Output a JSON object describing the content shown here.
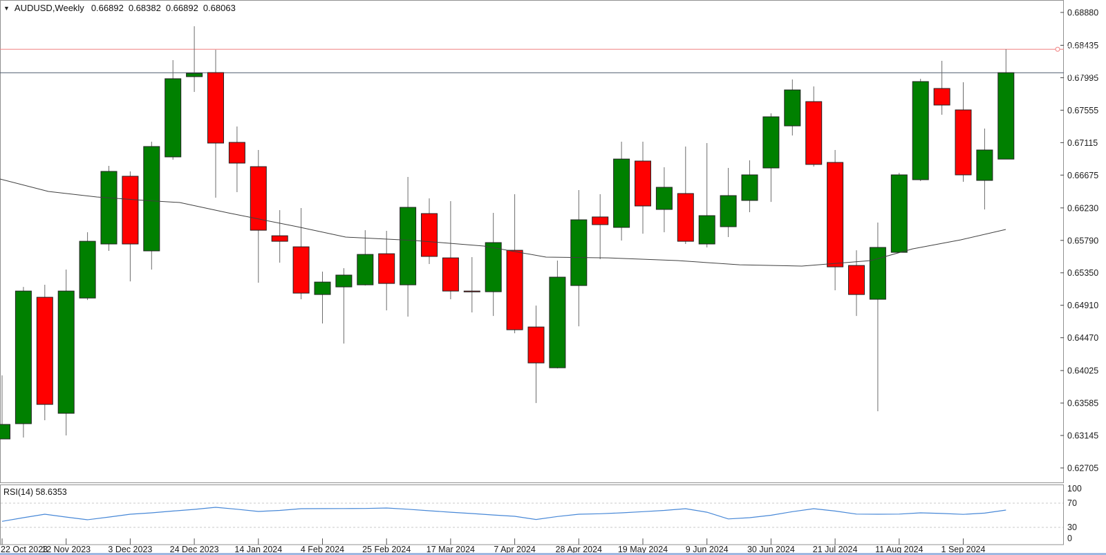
{
  "title": {
    "symbol": "AUDUSD,Weekly",
    "open": "0.66892",
    "high": "0.68382",
    "low": "0.66892",
    "close": "0.68063"
  },
  "chart_data": {
    "type": "candlestick",
    "symbol": "AUDUSD",
    "timeframe": "Weekly",
    "legend_position": "top-left",
    "grid": false,
    "current_bar": {
      "open": 0.66892,
      "high": 0.68382,
      "low": 0.66892,
      "close": 0.68063
    },
    "y_axis": {
      "side": "right",
      "ticks": [
        {
          "price": 0.6888,
          "label": "0.68880"
        },
        {
          "price": 0.68435,
          "label": "0.68435"
        },
        {
          "price": 0.67995,
          "label": "0.67995"
        },
        {
          "price": 0.67555,
          "label": "0.67555"
        },
        {
          "price": 0.67115,
          "label": "0.67115"
        },
        {
          "price": 0.66675,
          "label": "0.66675"
        },
        {
          "price": 0.6623,
          "label": "0.66230"
        },
        {
          "price": 0.6579,
          "label": "0.65790"
        },
        {
          "price": 0.6535,
          "label": "0.65350"
        },
        {
          "price": 0.6491,
          "label": "0.64910"
        },
        {
          "price": 0.6447,
          "label": "0.64470"
        },
        {
          "price": 0.64025,
          "label": "0.64025"
        },
        {
          "price": 0.63585,
          "label": "0.63585"
        },
        {
          "price": 0.63145,
          "label": "0.63145"
        },
        {
          "price": 0.62705,
          "label": "0.62705"
        }
      ]
    },
    "x_axis": {
      "labels": [
        {
          "index": 0,
          "label": "22 Oct 2023"
        },
        {
          "index": 3,
          "label": "12 Nov 2023"
        },
        {
          "index": 6,
          "label": "3 Dec 2023"
        },
        {
          "index": 9,
          "label": "24 Dec 2023"
        },
        {
          "index": 12,
          "label": "14 Jan 2024"
        },
        {
          "index": 15,
          "label": "4 Feb 2024"
        },
        {
          "index": 18,
          "label": "25 Feb 2024"
        },
        {
          "index": 21,
          "label": "17 Mar 2024"
        },
        {
          "index": 24,
          "label": "7 Apr 2024"
        },
        {
          "index": 27,
          "label": "28 Apr 2024"
        },
        {
          "index": 30,
          "label": "19 May 2024"
        },
        {
          "index": 33,
          "label": "9 Jun 2024"
        },
        {
          "index": 36,
          "label": "30 Jun 2024"
        },
        {
          "index": 39,
          "label": "21 Jul 2024"
        },
        {
          "index": 42,
          "label": "11 Aug 2024"
        },
        {
          "index": 45,
          "label": "1 Sep 2024"
        }
      ]
    },
    "candles": [
      [
        0.63098,
        0.6396,
        0.63098,
        0.63295
      ],
      [
        0.63305,
        0.65159,
        0.63117,
        0.65103
      ],
      [
        0.65019,
        0.65188,
        0.63352,
        0.63567
      ],
      [
        0.63445,
        0.65394,
        0.63145,
        0.65103
      ],
      [
        0.65009,
        0.659,
        0.64981,
        0.65778
      ],
      [
        0.65741,
        0.668,
        0.65647,
        0.66725
      ],
      [
        0.66659,
        0.66725,
        0.65234,
        0.65741
      ],
      [
        0.65647,
        0.67128,
        0.65394,
        0.67062
      ],
      [
        0.66921,
        0.68234,
        0.66884,
        0.67981
      ],
      [
        0.68009,
        0.68693,
        0.67802,
        0.68055
      ],
      [
        0.68065,
        0.68374,
        0.66369,
        0.67109
      ],
      [
        0.67118,
        0.67334,
        0.66444,
        0.66837
      ],
      [
        0.6679,
        0.67015,
        0.65216,
        0.65928
      ],
      [
        0.65853,
        0.662,
        0.65488,
        0.65778
      ],
      [
        0.65703,
        0.66228,
        0.64991,
        0.65075
      ],
      [
        0.65056,
        0.65366,
        0.64663,
        0.65225
      ],
      [
        0.65159,
        0.65413,
        0.64391,
        0.65319
      ],
      [
        0.65188,
        0.65928,
        0.65178,
        0.656
      ],
      [
        0.65609,
        0.65919,
        0.64841,
        0.65206
      ],
      [
        0.65188,
        0.6665,
        0.64756,
        0.66238
      ],
      [
        0.66153,
        0.66359,
        0.65469,
        0.65572
      ],
      [
        0.65553,
        0.66322,
        0.64991,
        0.65103
      ],
      [
        0.65103,
        0.65563,
        0.64813,
        0.65094
      ],
      [
        0.65094,
        0.66163,
        0.64766,
        0.6576
      ],
      [
        0.65656,
        0.66416,
        0.64531,
        0.64578
      ],
      [
        0.64616,
        0.64906,
        0.63585,
        0.64129
      ],
      [
        0.64063,
        0.65516,
        0.64054,
        0.65291
      ],
      [
        0.65178,
        0.66472,
        0.64625,
        0.66069
      ],
      [
        0.66107,
        0.66416,
        0.65535,
        0.66003
      ],
      [
        0.65966,
        0.67128,
        0.65788,
        0.66893
      ],
      [
        0.66865,
        0.67128,
        0.65881,
        0.66256
      ],
      [
        0.66209,
        0.66781,
        0.659,
        0.66509
      ],
      [
        0.66425,
        0.67062,
        0.65741,
        0.65778
      ],
      [
        0.65741,
        0.67109,
        0.65694,
        0.66125
      ],
      [
        0.65975,
        0.66772,
        0.65835,
        0.66397
      ],
      [
        0.66331,
        0.66875,
        0.66172,
        0.66678
      ],
      [
        0.66772,
        0.67512,
        0.66312,
        0.67465
      ],
      [
        0.67343,
        0.67971,
        0.67212,
        0.6783
      ],
      [
        0.67671,
        0.67877,
        0.6679,
        0.66819
      ],
      [
        0.66847,
        0.67015,
        0.65113,
        0.65431
      ],
      [
        0.6545,
        0.65656,
        0.64766,
        0.65056
      ],
      [
        0.64991,
        0.66032,
        0.63473,
        0.65694
      ],
      [
        0.65628,
        0.66706,
        0.65619,
        0.66678
      ],
      [
        0.66612,
        0.67981,
        0.66594,
        0.67943
      ],
      [
        0.67849,
        0.68224,
        0.67493,
        0.67624
      ],
      [
        0.67559,
        0.67934,
        0.66584,
        0.66678
      ],
      [
        0.66603,
        0.67306,
        0.66209,
        0.67015
      ],
      [
        0.66892,
        0.68382,
        0.66892,
        0.68063
      ]
    ],
    "ma_line": {
      "name": "moving-average",
      "points": [
        [
          0,
          0.66622
        ],
        [
          70,
          0.66453
        ],
        [
          140,
          0.66378
        ],
        [
          210,
          0.66331
        ],
        [
          260,
          0.66303
        ],
        [
          330,
          0.66163
        ],
        [
          430,
          0.65975
        ],
        [
          500,
          0.65835
        ],
        [
          600,
          0.65788
        ],
        [
          700,
          0.65713
        ],
        [
          790,
          0.65563
        ],
        [
          880,
          0.65553
        ],
        [
          980,
          0.65516
        ],
        [
          1070,
          0.65459
        ],
        [
          1160,
          0.65441
        ],
        [
          1260,
          0.65516
        ],
        [
          1320,
          0.65675
        ],
        [
          1390,
          0.65797
        ],
        [
          1455,
          0.65938
        ]
      ]
    },
    "hline": {
      "price": 0.68381,
      "label": "0.68381"
    },
    "current_price": {
      "value": 0.68063,
      "label": "0.68063"
    },
    "rsi": {
      "label": "RSI(14) 58.6353",
      "period": 14,
      "value": 58.6353,
      "levels": [
        100,
        70,
        30,
        0
      ],
      "dashed_levels": [
        70,
        30
      ],
      "values": [
        40,
        46,
        51.7,
        47,
        42.6,
        47,
        51.7,
        54,
        57,
        59.7,
        63.1,
        60,
        56.3,
        58,
        60.9,
        61,
        61.1,
        61.2,
        62,
        60,
        57.4,
        55,
        52.9,
        50.5,
        48.3,
        43,
        48,
        51.7,
        52.5,
        54,
        56,
        58,
        60.9,
        55,
        44,
        46,
        50,
        56,
        60.9,
        57,
        52,
        51.7,
        52,
        54,
        53,
        51.5,
        53.5,
        58.6
      ]
    },
    "colors": {
      "bull": "#008000",
      "bear": "#ff0000",
      "wick": "#6b6b6b",
      "body_border": "#222222",
      "ma": "#3f3f3f",
      "rsi_line": "#4687d7",
      "hline": "#f08080",
      "price_line": "#4e5b6e",
      "label_red_bg": "#ff0000",
      "label_black_bg": "#000000",
      "label_text": "#ffffff"
    }
  }
}
